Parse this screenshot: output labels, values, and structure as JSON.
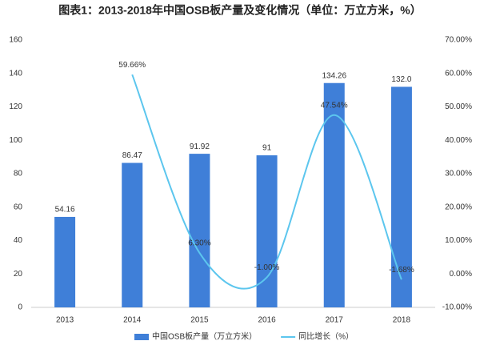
{
  "chart_data": {
    "type": "bar-line",
    "title": "图表1：2013-2018年中国OSB板产量及变化情况（单位：万立方米，%）",
    "categories": [
      "2013",
      "2014",
      "2015",
      "2016",
      "2017",
      "2018"
    ],
    "series": [
      {
        "name": "中国OSB板产量（万立方米）",
        "type": "bar",
        "color": "#3f7fd8",
        "values": [
          54.16,
          86.47,
          91.92,
          91,
          134.26,
          132.0
        ],
        "value_labels": [
          "54.16",
          "86.47",
          "91.92",
          "91",
          "134.26",
          "132.0"
        ]
      },
      {
        "name": "同比增长（%）",
        "type": "line",
        "axis": "y2",
        "color": "#5cc6ee",
        "values": [
          null,
          59.66,
          6.3,
          -1.0,
          47.54,
          -1.68
        ],
        "value_labels": [
          null,
          "59.66%",
          "6.30%",
          "-1.00%",
          "47.54%",
          "-1.68%"
        ]
      }
    ],
    "ylim": [
      0,
      160
    ],
    "yticks": [
      0,
      20,
      40,
      60,
      80,
      100,
      120,
      140,
      160
    ],
    "y2lim": [
      -10,
      70
    ],
    "y2ticks": [
      {
        "value": -10,
        "label": "-10.00%"
      },
      {
        "value": 0,
        "label": "0.00%"
      },
      {
        "value": 10,
        "label": "10.00%"
      },
      {
        "value": 20,
        "label": "20.00%"
      },
      {
        "value": 30,
        "label": "30.00%"
      },
      {
        "value": 40,
        "label": "40.00%"
      },
      {
        "value": 50,
        "label": "50.00%"
      },
      {
        "value": 60,
        "label": "60.00%"
      },
      {
        "value": 70,
        "label": "70.00%"
      }
    ],
    "legend": "bottom"
  }
}
